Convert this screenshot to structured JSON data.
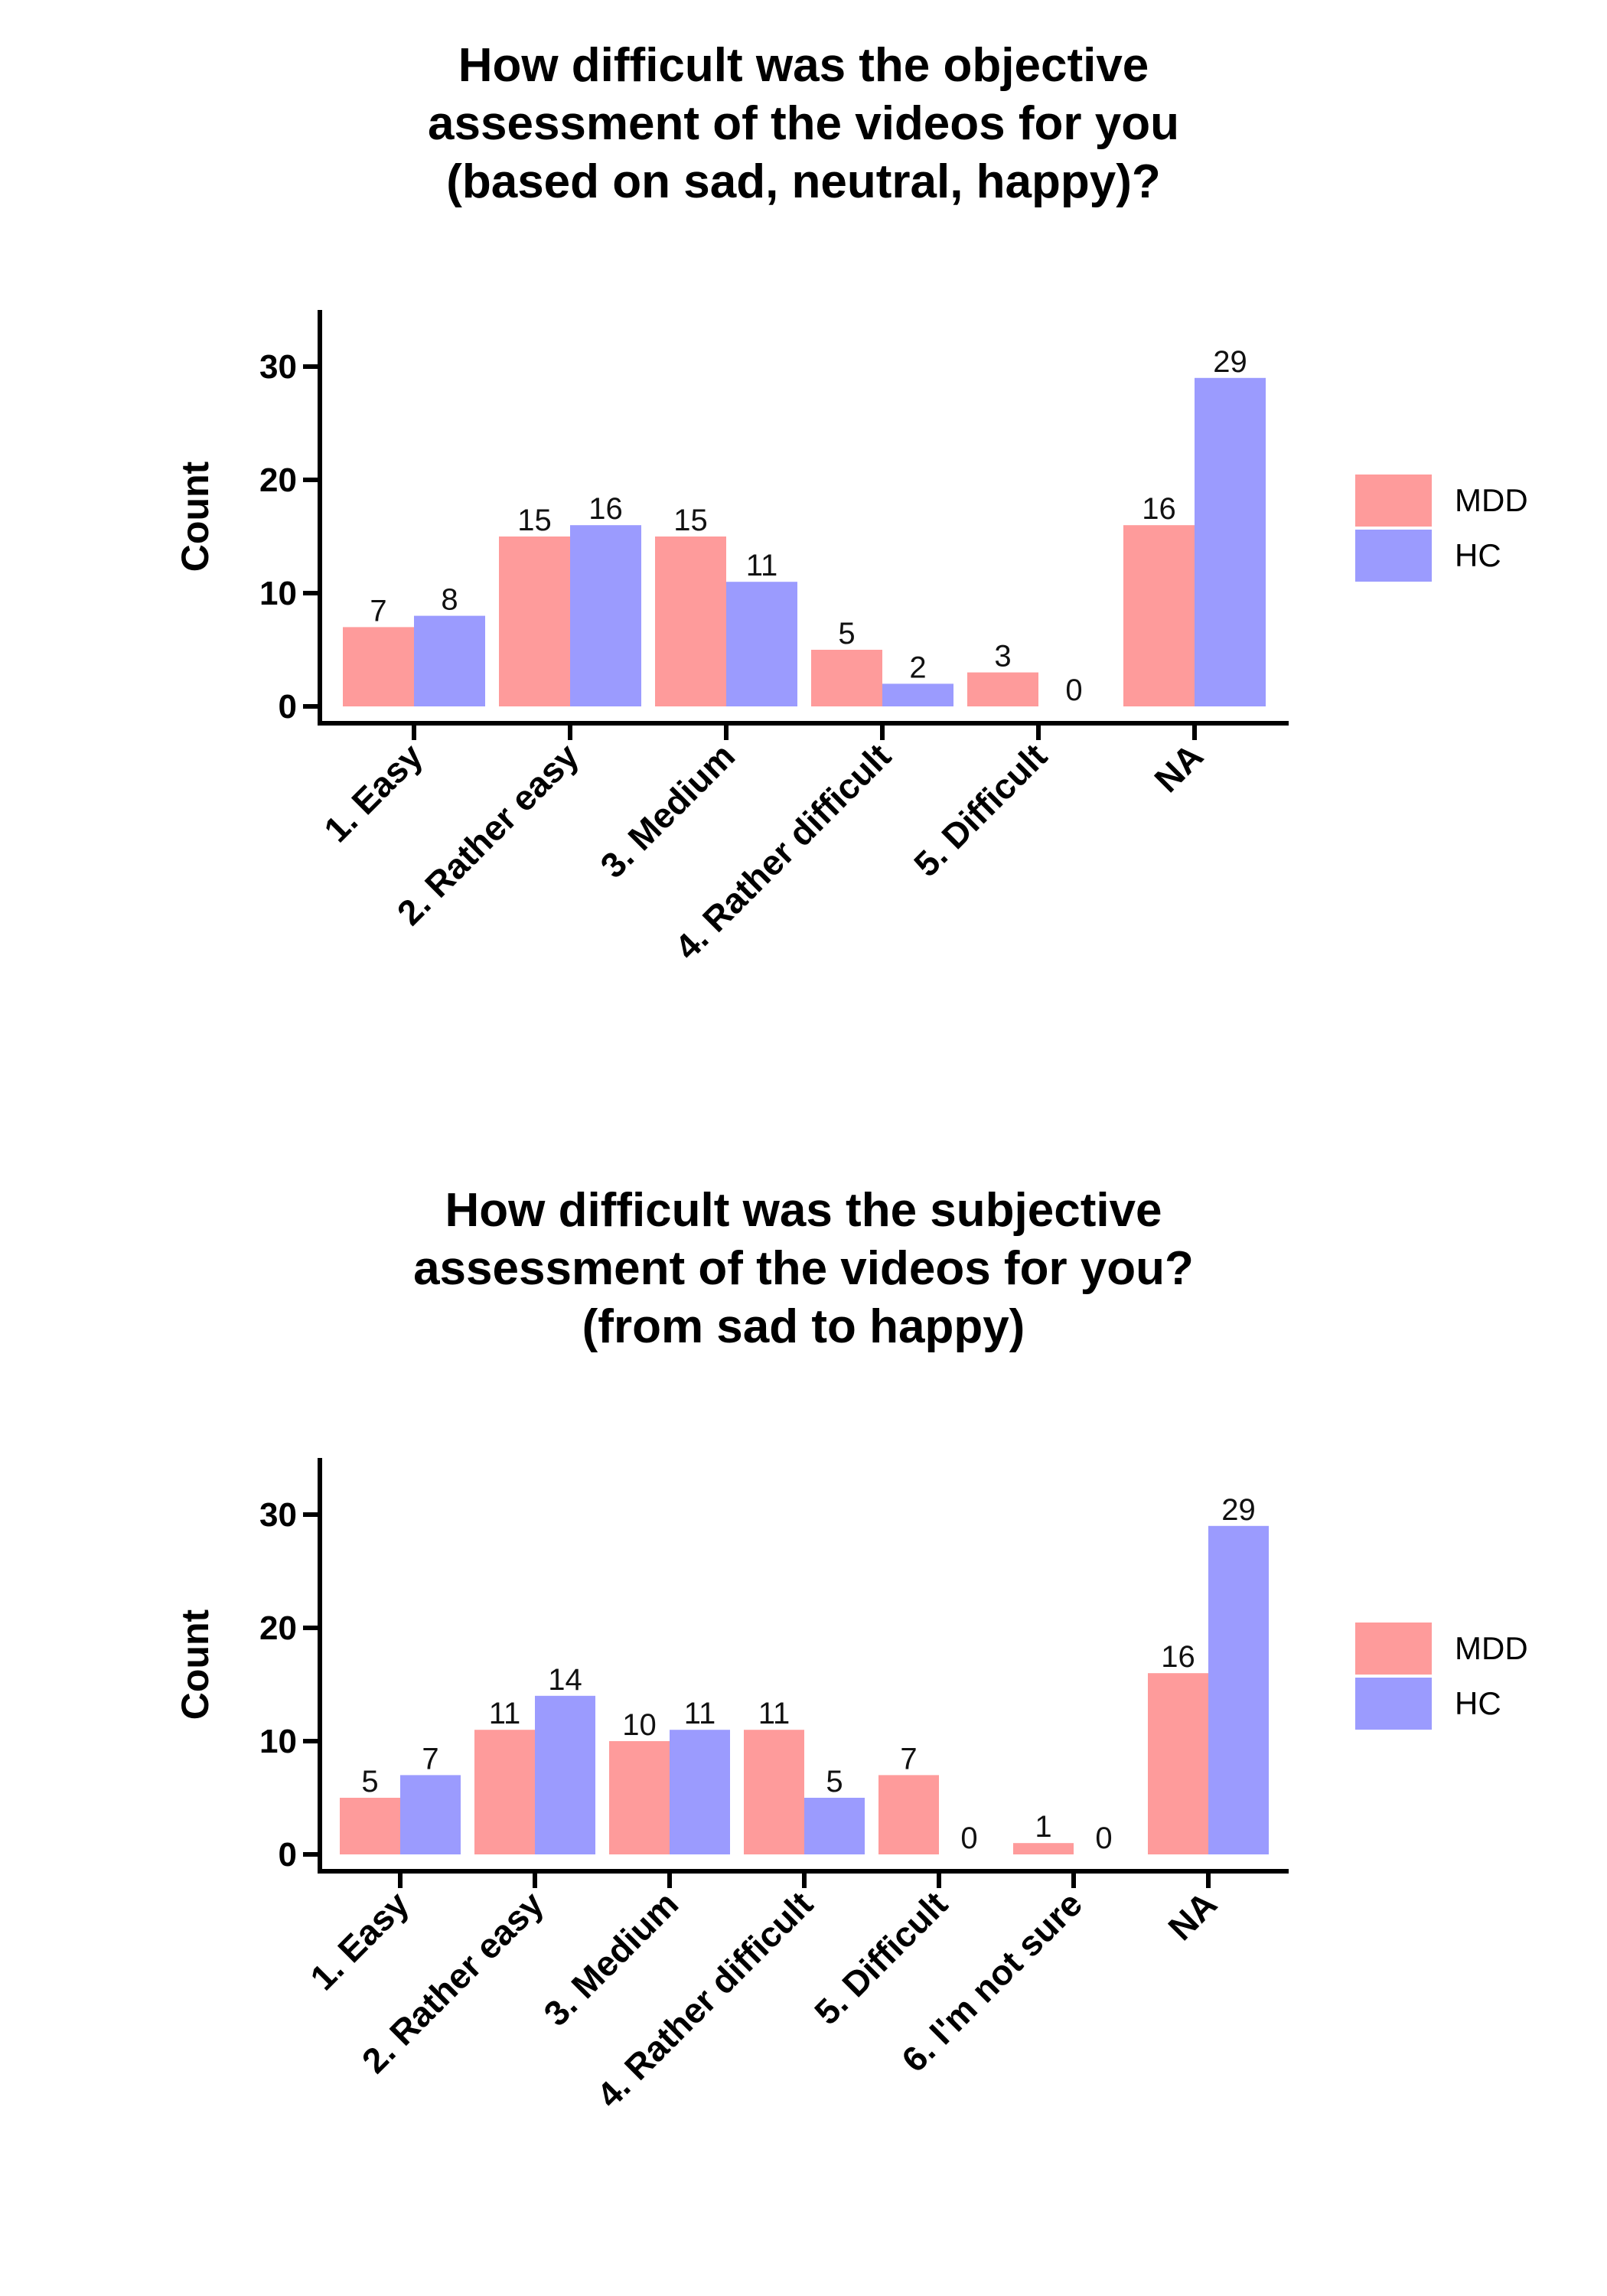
{
  "chart_data": [
    {
      "type": "bar",
      "title": [
        "How difficult was the objective",
        "assessment of the videos for you",
        "(based on sad, neutral, happy)?"
      ],
      "xlabel": "",
      "ylabel": "Count",
      "categories": [
        "1. Easy",
        "2. Rather easy",
        "3. Medium",
        "4. Rather difficult",
        "5. Difficult",
        "NA"
      ],
      "series": [
        {
          "name": "MDD",
          "values": [
            7,
            15,
            15,
            5,
            3,
            16
          ],
          "color": "#fe9b9b"
        },
        {
          "name": "HC",
          "values": [
            8,
            16,
            11,
            2,
            0,
            29
          ],
          "color": "#9b9bfe"
        }
      ],
      "data_labels": [
        [
          "7",
          "15",
          "15",
          "5",
          "3",
          "16"
        ],
        [
          "8",
          "16",
          "11",
          "2",
          "0",
          "29"
        ]
      ],
      "y_ticks": [
        0,
        10,
        20,
        30
      ],
      "y_tick_labels": [
        "0",
        "10",
        "20",
        "30"
      ],
      "ylim": [
        0,
        35
      ],
      "grid": false,
      "legend": "right"
    },
    {
      "type": "bar",
      "title": [
        "How difficult was the subjective",
        "assessment of the videos for you?",
        "(from sad to happy)"
      ],
      "xlabel": "",
      "ylabel": "Count",
      "categories": [
        "1. Easy",
        "2. Rather easy",
        "3. Medium",
        "4. Rather difficult",
        "5. Difficult",
        "6. I'm not sure",
        "NA"
      ],
      "series": [
        {
          "name": "MDD",
          "values": [
            5,
            11,
            10,
            11,
            7,
            1,
            16
          ],
          "color": "#fe9b9b"
        },
        {
          "name": "HC",
          "values": [
            7,
            14,
            11,
            5,
            0,
            0,
            29
          ],
          "color": "#9b9bfe"
        }
      ],
      "data_labels": [
        [
          "5",
          "11",
          "10",
          "11",
          "7",
          "1",
          "16"
        ],
        [
          "7",
          "14",
          "11",
          "5",
          "0",
          "0",
          "29"
        ]
      ],
      "y_ticks": [
        0,
        10,
        20,
        30
      ],
      "y_tick_labels": [
        "0",
        "10",
        "20",
        "30"
      ],
      "ylim": [
        0,
        35
      ],
      "grid": false,
      "legend": "right"
    }
  ]
}
